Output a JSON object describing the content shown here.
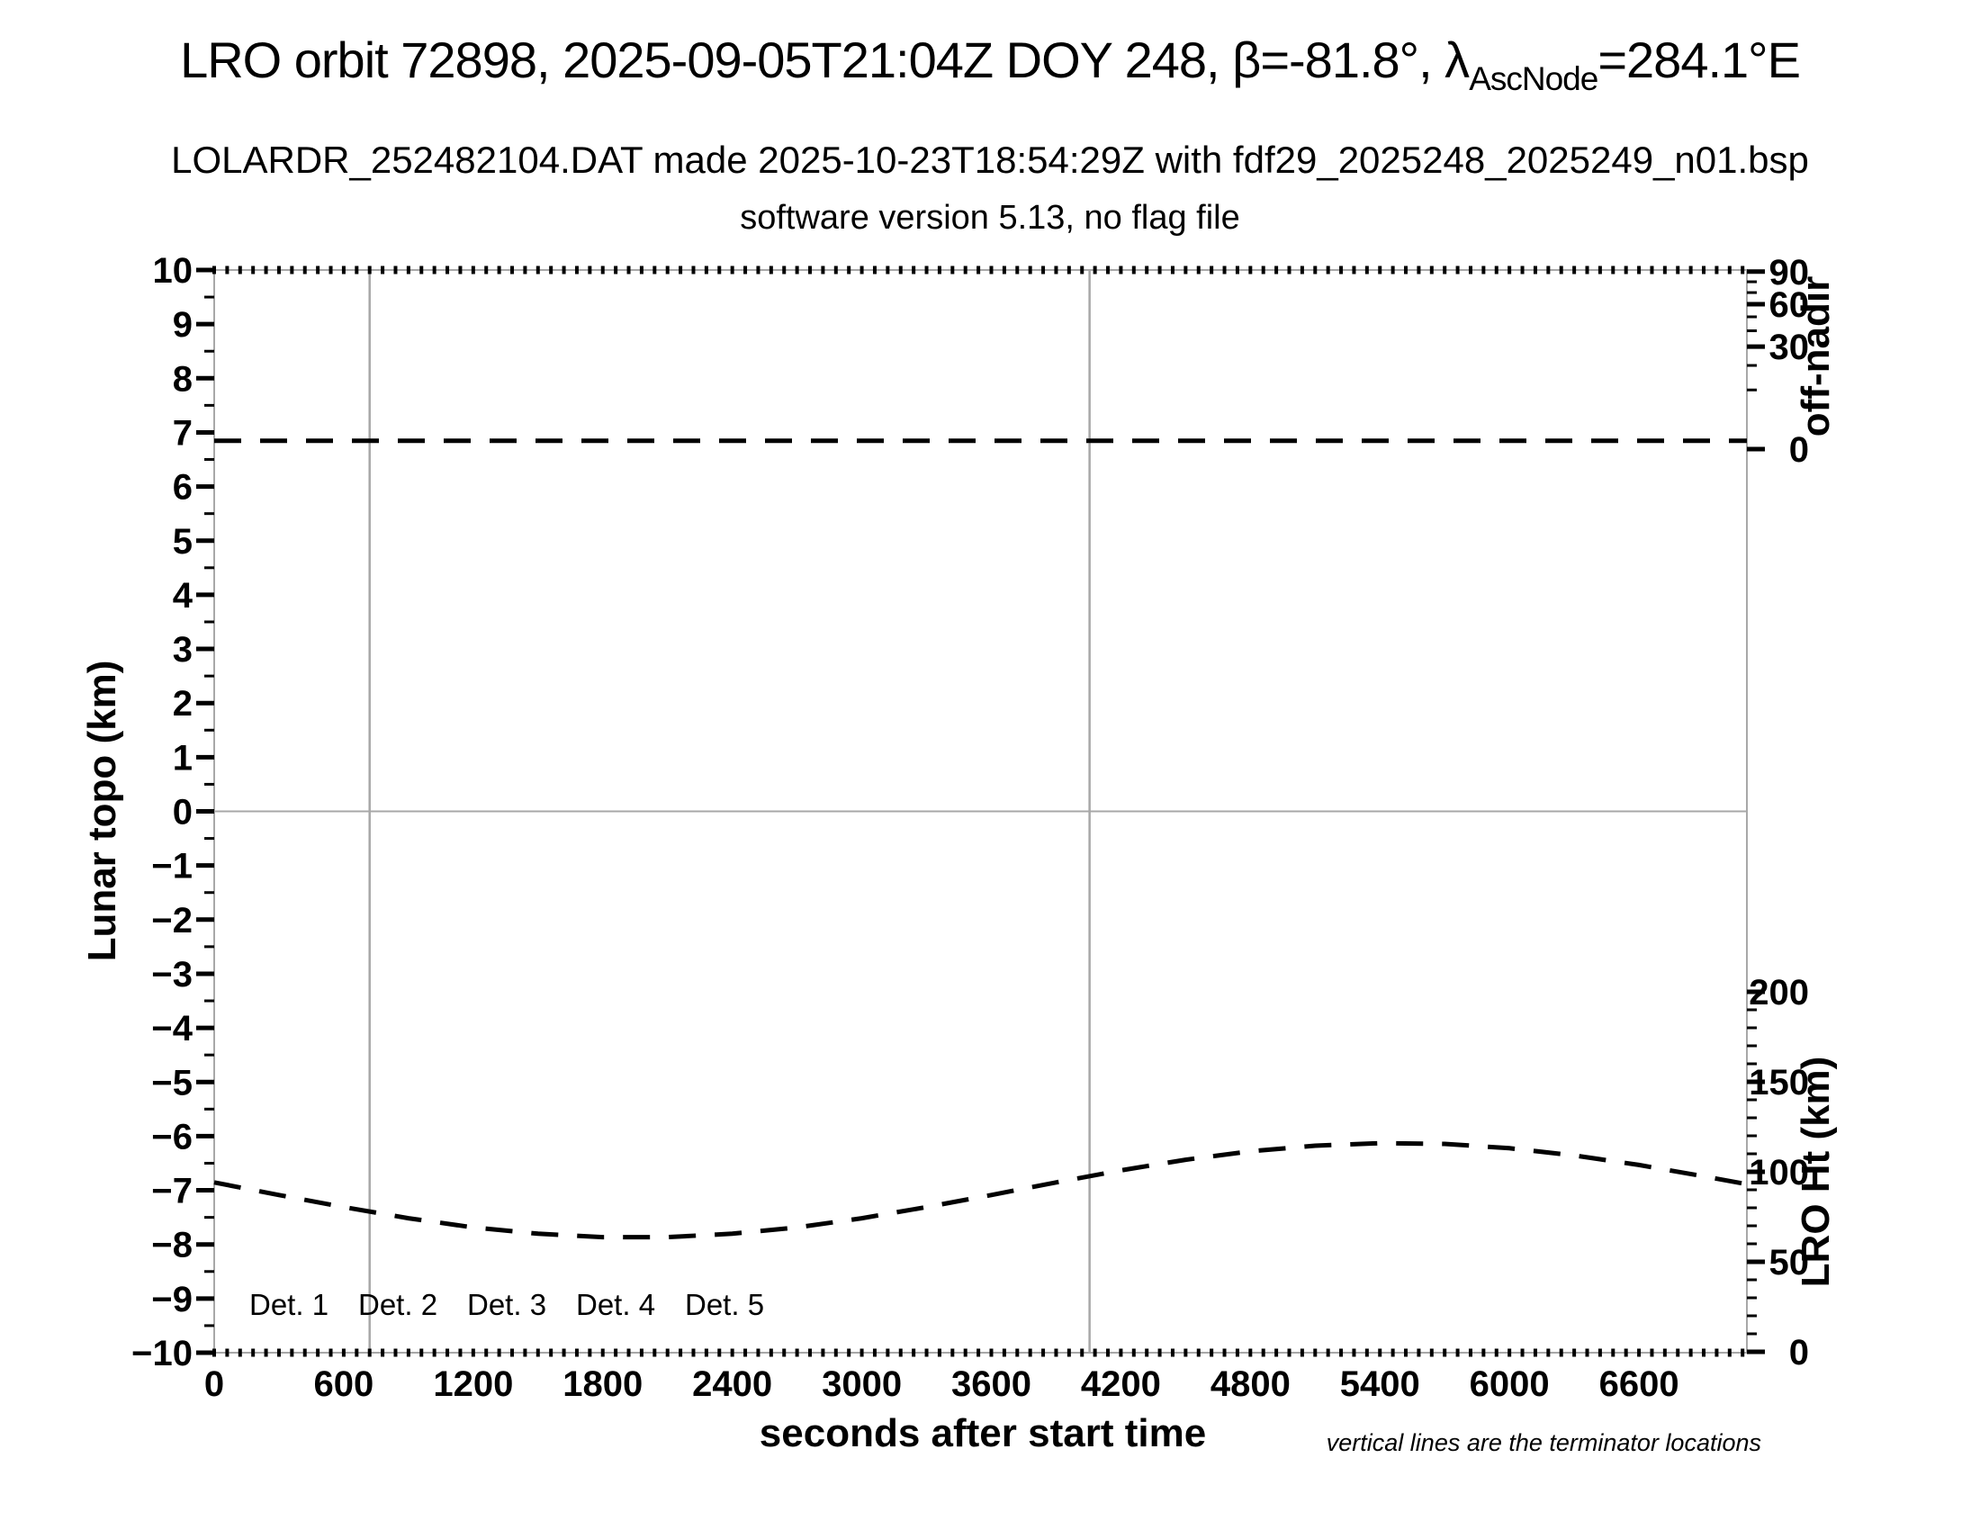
{
  "header": {
    "title_prefix": "LRO orbit 72898, 2025-09-05T21:04Z DOY 248, β=-81.8°, λ",
    "title_subscript": "AscNode",
    "title_suffix": "=284.1°E",
    "line2": "LOLARDR_252482104.DAT made 2025-10-23T18:54:29Z with fdf29_2025248_2025249_n01.bsp",
    "line3": "software version 5.13, no flag file"
  },
  "footnote": "vertical lines are the terminator locations",
  "legend": {
    "items": [
      {
        "label": "Det. 1",
        "color": "#000000"
      },
      {
        "label": "Det. 2",
        "color": "#0000ff"
      },
      {
        "label": "Det. 3",
        "color": "#00dd00"
      },
      {
        "label": "Det. 4",
        "color": "#ffa500"
      },
      {
        "label": "Det. 5",
        "color": "#ff0000"
      }
    ]
  },
  "chart_data": {
    "type": "line",
    "title": "LRO orbit 72898, 2025-09-05T21:04Z DOY 248, β=-81.8°, λ_AscNode=284.1°E",
    "xlabel": "seconds after start time",
    "ylabel_left": "Lunar topo (km)",
    "ylabel_right_top": "off-nadir",
    "ylabel_right_bottom": "LRO Ht (km)",
    "grid": {
      "horizontal_zero_line": true,
      "terminator_vertical_lines": true,
      "legend_position": "bottom-left inside plot"
    },
    "axes": {
      "x": {
        "min": 0,
        "max": 7100,
        "major_tick_interval": 600,
        "minor_tick_interval": 60,
        "tick_labels": [
          0,
          600,
          1200,
          1800,
          2400,
          3000,
          3600,
          4200,
          4800,
          5400,
          6000,
          6600
        ]
      },
      "y_left": {
        "min": -10,
        "max": 10,
        "major_tick_interval": 1,
        "minor_tick_interval": 0.5
      },
      "y_right_top": {
        "scale": "position ~ sqrt(angle/90), degrees off-nadir",
        "tick_labels": [
          90,
          60,
          30,
          0
        ],
        "minor_ticks": [
          80,
          70,
          50,
          40,
          20,
          10
        ]
      },
      "y_right_bottom": {
        "min": 0,
        "max": 200,
        "units": "km",
        "major_tick_interval": 50,
        "minor_tick_interval": 10,
        "tick_labels": [
          200,
          150,
          100,
          50,
          0
        ]
      }
    },
    "terminator_times_s": [
      720,
      4055
    ],
    "series": [
      {
        "name": "off-nadir angle",
        "axis": "y_right_top",
        "style": "dashed black",
        "points": [
          [
            0,
            0.2
          ],
          [
            7100,
            0.2
          ]
        ]
      },
      {
        "name": "LRO height",
        "axis": "y_right_bottom",
        "style": "dashed black",
        "points": [
          [
            0,
            94.1
          ],
          [
            300,
            87.1
          ],
          [
            600,
            80.4
          ],
          [
            900,
            74.2
          ],
          [
            1200,
            69.1
          ],
          [
            1500,
            65.6
          ],
          [
            1800,
            63.7
          ],
          [
            2100,
            63.7
          ],
          [
            2400,
            65.6
          ],
          [
            2700,
            69.1
          ],
          [
            3000,
            74.2
          ],
          [
            3300,
            80.4
          ],
          [
            3600,
            87.1
          ],
          [
            3900,
            94.1
          ],
          [
            4200,
            100.8
          ],
          [
            4500,
            106.7
          ],
          [
            4800,
            111.4
          ],
          [
            5100,
            114.5
          ],
          [
            5400,
            115.9
          ],
          [
            5700,
            115.5
          ],
          [
            6000,
            113.1
          ],
          [
            6300,
            109.1
          ],
          [
            6600,
            103.8
          ],
          [
            6900,
            97.5
          ],
          [
            7100,
            93.1
          ]
        ]
      }
    ]
  }
}
